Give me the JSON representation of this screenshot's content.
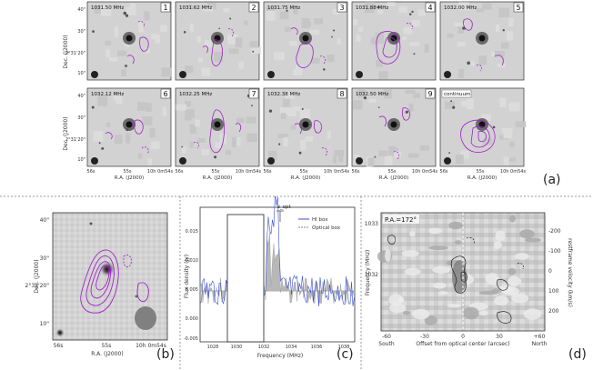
{
  "panel_a": {
    "panels": [
      {
        "freq": "1031.50 MHz",
        "num": "1"
      },
      {
        "freq": "1031.62 MHz",
        "num": "2"
      },
      {
        "freq": "1031.75 MHz",
        "num": "3"
      },
      {
        "freq": "1031.88 MHz",
        "num": "4"
      },
      {
        "freq": "1032.00 MHz",
        "num": "5"
      },
      {
        "freq": "1032.12 MHz",
        "num": "6"
      },
      {
        "freq": "1032.25 MHz",
        "num": "7"
      },
      {
        "freq": "1032.38 MHz",
        "num": "8"
      },
      {
        "freq": "1032.50 MHz",
        "num": "9"
      },
      {
        "freq": "continuum",
        "num": ""
      }
    ],
    "ytick_top": "40\"",
    "ytick_mid": "30\"",
    "ytick_main": "2°31'20\"",
    "ytick_bot": "10\"",
    "ylabel": "Dec. (J2000)",
    "xticks": [
      "56s",
      "55s",
      "10h 0m54s"
    ],
    "xlabel": "R.A. (J2000)",
    "panel_label": "(a)"
  },
  "panel_b": {
    "yticks": [
      "40\"",
      "30\"",
      "2°31'20\"",
      "10\""
    ],
    "ylabel": "Dec. (J2000)",
    "xticks": [
      "56s",
      "55s",
      "10h 0m54s"
    ],
    "xlabel": "R.A. (J2000)",
    "panel_label": "(b)"
  },
  "panel_c": {
    "ylabel": "Flux density (Jy)",
    "xlabel": "Frequency (MHz)",
    "yticks": [
      "0.015",
      "0.010",
      "0.005",
      "0.000",
      "-0.005"
    ],
    "xticks": [
      "1028",
      "1030",
      "1032",
      "1034",
      "1036",
      "1038"
    ],
    "legend": [
      "HI box",
      "Optical box"
    ],
    "annotation": "z_opt",
    "panel_label": "(c)"
  },
  "panel_d": {
    "pa_label": "P.A.=172°",
    "ylabel_left": "Frequency (MHz)",
    "ylabel_right": "restframe velocity (km/s)",
    "yticks_left": [
      "1033",
      "1032"
    ],
    "yticks_right": [
      "-200",
      "-100",
      "0",
      "100",
      "200"
    ],
    "xticks": [
      "-60",
      "-30",
      "0",
      "30",
      "+60"
    ],
    "xlabel": "Offset from optical center (arcsec)",
    "south": "South",
    "north": "North",
    "panel_label": "(d)"
  },
  "colors": {
    "contour": "#a020c8",
    "blue": "#3a4fd6",
    "gray": "#9a9a9a"
  }
}
